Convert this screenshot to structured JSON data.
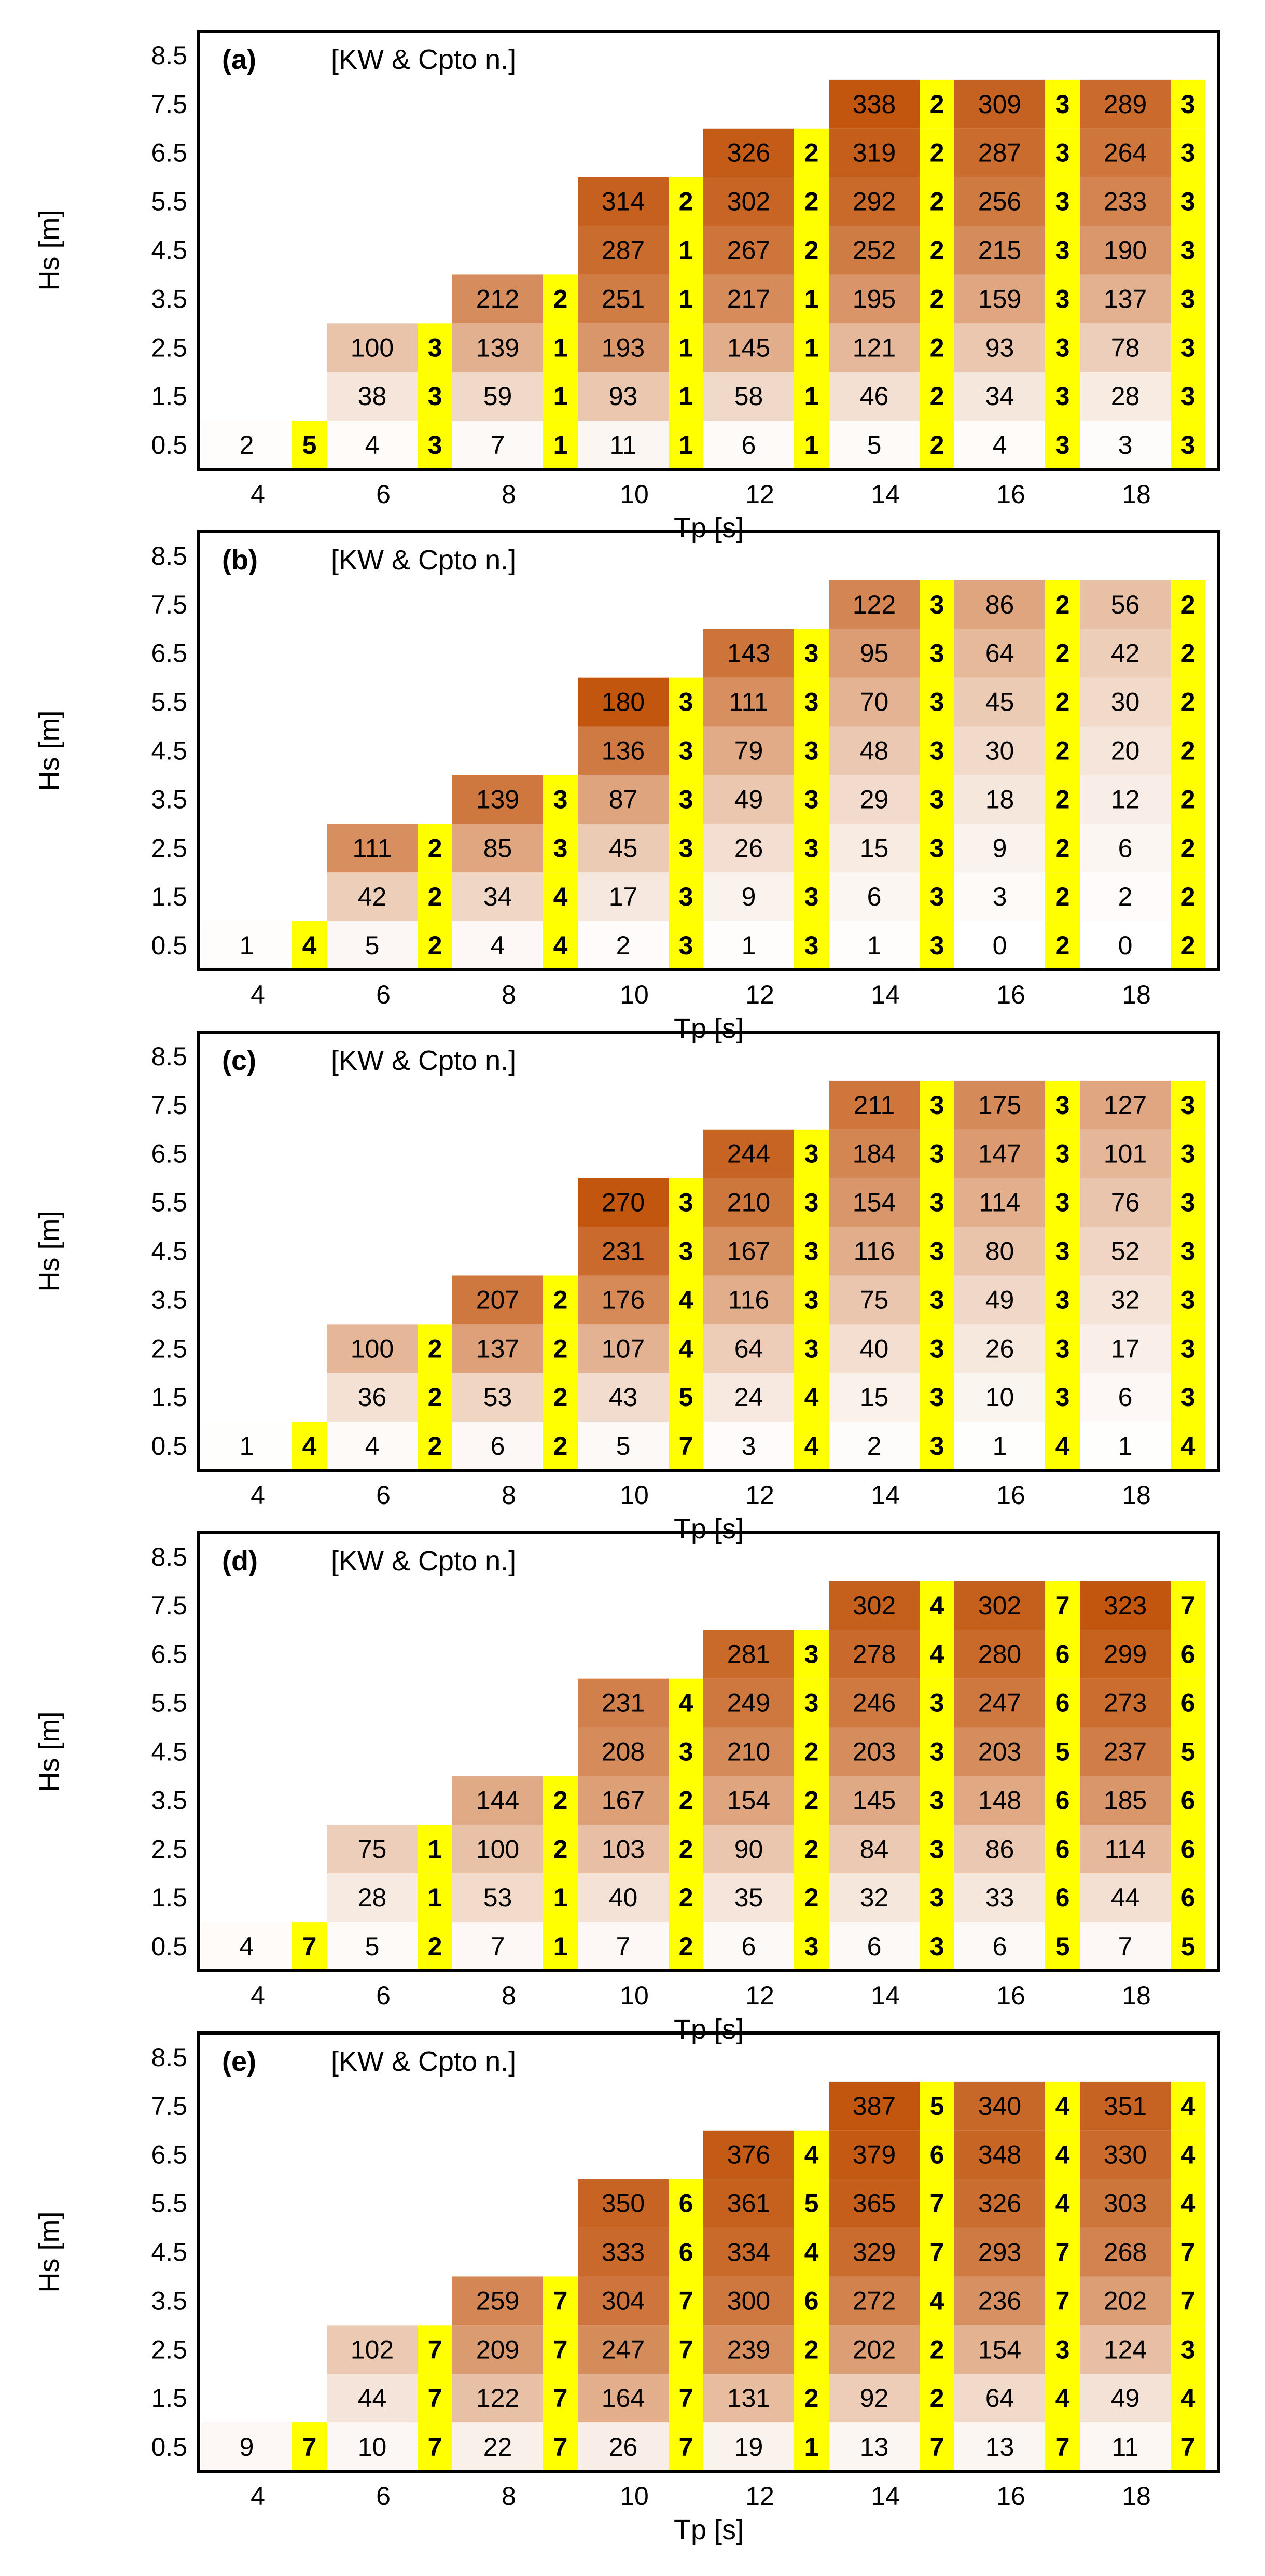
{
  "figure": {
    "legend_note": "[KW & Cpto n.]",
    "xlabel": "Tp [s]",
    "ylabel": "Hs [m]",
    "x_ticks": [
      "4",
      "6",
      "8",
      "10",
      "12",
      "14",
      "16",
      "18"
    ],
    "y_ticks": [
      "8.5",
      "7.5",
      "6.5",
      "5.5",
      "4.5",
      "3.5",
      "2.5",
      "1.5",
      "0.5"
    ]
  },
  "colors": {
    "cpto_highlight": "#FFFF00",
    "heat_low": "#FFFFFF",
    "heat_high": "#C2560F",
    "frame": "#000000"
  },
  "chart_data": [
    {
      "type": "heatmap",
      "panel": "(a)",
      "xlabel": "Tp [s]",
      "ylabel": "Hs [m]",
      "tp": [
        4,
        6,
        8,
        10,
        12,
        14,
        16,
        18
      ],
      "hs": [
        0.5,
        1.5,
        2.5,
        3.5,
        4.5,
        5.5,
        6.5,
        7.5,
        8.5
      ],
      "power_kw": [
        [
          2,
          4,
          7,
          11,
          6,
          5,
          4,
          3
        ],
        [
          null,
          38,
          59,
          93,
          58,
          46,
          34,
          28
        ],
        [
          null,
          100,
          139,
          193,
          145,
          121,
          93,
          78
        ],
        [
          null,
          null,
          212,
          251,
          217,
          195,
          159,
          137
        ],
        [
          null,
          null,
          null,
          287,
          267,
          252,
          215,
          190
        ],
        [
          null,
          null,
          null,
          314,
          302,
          292,
          256,
          233
        ],
        [
          null,
          null,
          null,
          null,
          326,
          319,
          287,
          264
        ],
        [
          null,
          null,
          null,
          null,
          null,
          338,
          309,
          289
        ],
        [
          null,
          null,
          null,
          null,
          null,
          null,
          null,
          null
        ]
      ],
      "cpto_n": [
        [
          5,
          3,
          1,
          1,
          1,
          2,
          3,
          3
        ],
        [
          null,
          3,
          1,
          1,
          1,
          2,
          3,
          3
        ],
        [
          null,
          3,
          1,
          1,
          1,
          2,
          3,
          3
        ],
        [
          null,
          null,
          2,
          1,
          1,
          2,
          3,
          3
        ],
        [
          null,
          null,
          null,
          1,
          2,
          2,
          3,
          3
        ],
        [
          null,
          null,
          null,
          2,
          2,
          2,
          3,
          3
        ],
        [
          null,
          null,
          null,
          null,
          2,
          2,
          3,
          3
        ],
        [
          null,
          null,
          null,
          null,
          null,
          2,
          3,
          3
        ],
        [
          null,
          null,
          null,
          null,
          null,
          null,
          null,
          null
        ]
      ]
    },
    {
      "type": "heatmap",
      "panel": "(b)",
      "xlabel": "Tp [s]",
      "ylabel": "Hs [m]",
      "tp": [
        4,
        6,
        8,
        10,
        12,
        14,
        16,
        18
      ],
      "hs": [
        0.5,
        1.5,
        2.5,
        3.5,
        4.5,
        5.5,
        6.5,
        7.5,
        8.5
      ],
      "power_kw": [
        [
          1,
          5,
          4,
          2,
          1,
          1,
          0,
          0
        ],
        [
          null,
          42,
          34,
          17,
          9,
          6,
          3,
          2
        ],
        [
          null,
          111,
          85,
          45,
          26,
          15,
          9,
          6
        ],
        [
          null,
          null,
          139,
          87,
          49,
          29,
          18,
          12
        ],
        [
          null,
          null,
          null,
          136,
          79,
          48,
          30,
          20
        ],
        [
          null,
          null,
          null,
          180,
          111,
          70,
          45,
          30
        ],
        [
          null,
          null,
          null,
          null,
          143,
          95,
          64,
          42
        ],
        [
          null,
          null,
          null,
          null,
          null,
          122,
          86,
          56
        ],
        [
          null,
          null,
          null,
          null,
          null,
          null,
          null,
          null
        ]
      ],
      "cpto_n": [
        [
          4,
          2,
          4,
          3,
          3,
          3,
          2,
          2
        ],
        [
          null,
          2,
          4,
          3,
          3,
          3,
          2,
          2
        ],
        [
          null,
          2,
          3,
          3,
          3,
          3,
          2,
          2
        ],
        [
          null,
          null,
          3,
          3,
          3,
          3,
          2,
          2
        ],
        [
          null,
          null,
          null,
          3,
          3,
          3,
          2,
          2
        ],
        [
          null,
          null,
          null,
          3,
          3,
          3,
          2,
          2
        ],
        [
          null,
          null,
          null,
          null,
          3,
          3,
          2,
          2
        ],
        [
          null,
          null,
          null,
          null,
          null,
          3,
          2,
          2
        ],
        [
          null,
          null,
          null,
          null,
          null,
          null,
          null,
          null
        ]
      ]
    },
    {
      "type": "heatmap",
      "panel": "(c)",
      "xlabel": "Tp [s]",
      "ylabel": "Hs [m]",
      "tp": [
        4,
        6,
        8,
        10,
        12,
        14,
        16,
        18
      ],
      "hs": [
        0.5,
        1.5,
        2.5,
        3.5,
        4.5,
        5.5,
        6.5,
        7.5,
        8.5
      ],
      "power_kw": [
        [
          1,
          4,
          6,
          5,
          3,
          2,
          1,
          1
        ],
        [
          null,
          36,
          53,
          43,
          24,
          15,
          10,
          6
        ],
        [
          null,
          100,
          137,
          107,
          64,
          40,
          26,
          17
        ],
        [
          null,
          null,
          207,
          176,
          116,
          75,
          49,
          32
        ],
        [
          null,
          null,
          null,
          231,
          167,
          116,
          80,
          52
        ],
        [
          null,
          null,
          null,
          270,
          210,
          154,
          114,
          76
        ],
        [
          null,
          null,
          null,
          null,
          244,
          184,
          147,
          101
        ],
        [
          null,
          null,
          null,
          null,
          null,
          211,
          175,
          127
        ],
        [
          null,
          null,
          null,
          null,
          null,
          null,
          null,
          null
        ]
      ],
      "cpto_n": [
        [
          4,
          2,
          2,
          7,
          4,
          3,
          4,
          4
        ],
        [
          null,
          2,
          2,
          5,
          4,
          3,
          3,
          3
        ],
        [
          null,
          2,
          2,
          4,
          3,
          3,
          3,
          3
        ],
        [
          null,
          null,
          2,
          4,
          3,
          3,
          3,
          3
        ],
        [
          null,
          null,
          null,
          3,
          3,
          3,
          3,
          3
        ],
        [
          null,
          null,
          null,
          3,
          3,
          3,
          3,
          3
        ],
        [
          null,
          null,
          null,
          null,
          3,
          3,
          3,
          3
        ],
        [
          null,
          null,
          null,
          null,
          null,
          3,
          3,
          3
        ],
        [
          null,
          null,
          null,
          null,
          null,
          null,
          null,
          null
        ]
      ]
    },
    {
      "type": "heatmap",
      "panel": "(d)",
      "xlabel": "Tp [s]",
      "ylabel": "Hs [m]",
      "tp": [
        4,
        6,
        8,
        10,
        12,
        14,
        16,
        18
      ],
      "hs": [
        0.5,
        1.5,
        2.5,
        3.5,
        4.5,
        5.5,
        6.5,
        7.5,
        8.5
      ],
      "power_kw": [
        [
          4,
          5,
          7,
          7,
          6,
          6,
          6,
          7
        ],
        [
          null,
          28,
          53,
          40,
          35,
          32,
          33,
          44
        ],
        [
          null,
          75,
          100,
          103,
          90,
          84,
          86,
          114
        ],
        [
          null,
          null,
          144,
          167,
          154,
          145,
          148,
          185
        ],
        [
          null,
          null,
          null,
          208,
          210,
          203,
          203,
          237
        ],
        [
          null,
          null,
          null,
          231,
          249,
          246,
          247,
          273
        ],
        [
          null,
          null,
          null,
          null,
          281,
          278,
          280,
          299
        ],
        [
          null,
          null,
          null,
          null,
          null,
          302,
          302,
          323
        ],
        [
          null,
          null,
          null,
          null,
          null,
          null,
          null,
          null
        ]
      ],
      "cpto_n": [
        [
          7,
          2,
          1,
          2,
          3,
          3,
          5,
          5
        ],
        [
          null,
          1,
          1,
          2,
          2,
          3,
          6,
          6
        ],
        [
          null,
          1,
          2,
          2,
          2,
          3,
          6,
          6
        ],
        [
          null,
          null,
          2,
          2,
          2,
          3,
          6,
          6
        ],
        [
          null,
          null,
          null,
          3,
          2,
          3,
          5,
          5
        ],
        [
          null,
          null,
          null,
          4,
          3,
          3,
          6,
          6
        ],
        [
          null,
          null,
          null,
          null,
          3,
          4,
          6,
          6
        ],
        [
          null,
          null,
          null,
          null,
          null,
          4,
          7,
          7
        ],
        [
          null,
          null,
          null,
          null,
          null,
          null,
          null,
          null
        ]
      ]
    },
    {
      "type": "heatmap",
      "panel": "(e)",
      "xlabel": "Tp [s]",
      "ylabel": "Hs [m]",
      "tp": [
        4,
        6,
        8,
        10,
        12,
        14,
        16,
        18
      ],
      "hs": [
        0.5,
        1.5,
        2.5,
        3.5,
        4.5,
        5.5,
        6.5,
        7.5,
        8.5
      ],
      "power_kw": [
        [
          9,
          10,
          22,
          26,
          19,
          13,
          13,
          11
        ],
        [
          null,
          44,
          122,
          164,
          131,
          92,
          64,
          49
        ],
        [
          null,
          102,
          209,
          247,
          239,
          202,
          154,
          124
        ],
        [
          null,
          null,
          259,
          304,
          300,
          272,
          236,
          202
        ],
        [
          null,
          null,
          null,
          333,
          334,
          329,
          293,
          268
        ],
        [
          null,
          null,
          null,
          350,
          361,
          365,
          326,
          303
        ],
        [
          null,
          null,
          null,
          null,
          376,
          379,
          348,
          330
        ],
        [
          null,
          null,
          null,
          null,
          null,
          387,
          340,
          351
        ],
        [
          null,
          null,
          null,
          null,
          null,
          null,
          null,
          null
        ]
      ],
      "cpto_n": [
        [
          7,
          7,
          7,
          7,
          1,
          7,
          7,
          7
        ],
        [
          null,
          7,
          7,
          7,
          2,
          2,
          4,
          4
        ],
        [
          null,
          7,
          7,
          7,
          2,
          2,
          3,
          3
        ],
        [
          null,
          null,
          7,
          7,
          6,
          4,
          7,
          7
        ],
        [
          null,
          null,
          null,
          6,
          4,
          7,
          7,
          7
        ],
        [
          null,
          null,
          null,
          6,
          5,
          7,
          4,
          4
        ],
        [
          null,
          null,
          null,
          null,
          4,
          6,
          4,
          4
        ],
        [
          null,
          null,
          null,
          null,
          null,
          5,
          4,
          4
        ],
        [
          null,
          null,
          null,
          null,
          null,
          null,
          null,
          null
        ]
      ]
    }
  ]
}
